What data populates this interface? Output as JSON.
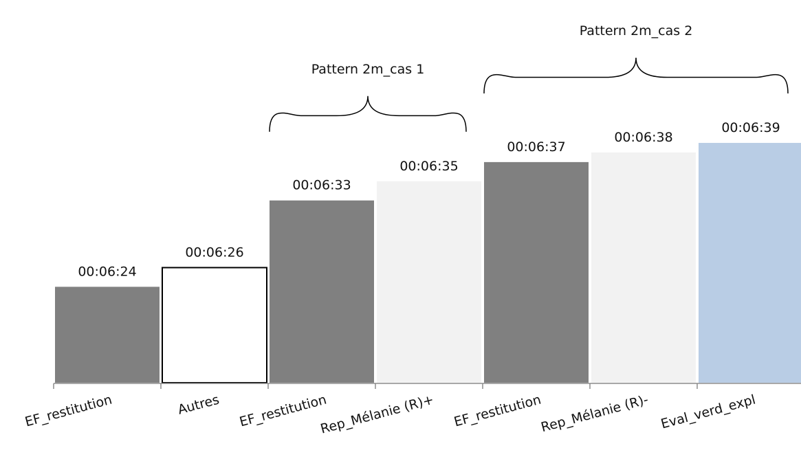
{
  "chart_data": {
    "type": "bar",
    "categories": [
      "EF_restitution",
      "Autres",
      "EF_restitution",
      "Rep_Mélanie (R)+",
      "EF_restitution",
      "Rep_Mélanie (R)-",
      "Eval_verd_expl"
    ],
    "values": [
      384,
      386,
      393,
      395,
      397,
      398,
      399
    ],
    "value_labels": [
      "00:06:24",
      "00:06:26",
      "00:06:33",
      "00:06:35",
      "00:06:37",
      "00:06:38",
      "00:06:39"
    ],
    "value_unit": "seconds",
    "bar_colors": [
      "#808080",
      "#ffffff",
      "#808080",
      "#f2f2f2",
      "#808080",
      "#f2f2f2",
      "#b9cde5"
    ],
    "bar_outline": [
      false,
      true,
      false,
      false,
      false,
      false,
      false
    ],
    "ylim": [
      374,
      400
    ],
    "annotations": [
      {
        "text": "Pattern 2m_cas 1",
        "from_index": 2,
        "to_index": 3
      },
      {
        "text": "Pattern 2m_cas 2",
        "from_index": 4,
        "to_index": 6
      }
    ],
    "grid": false,
    "legend": "none"
  }
}
